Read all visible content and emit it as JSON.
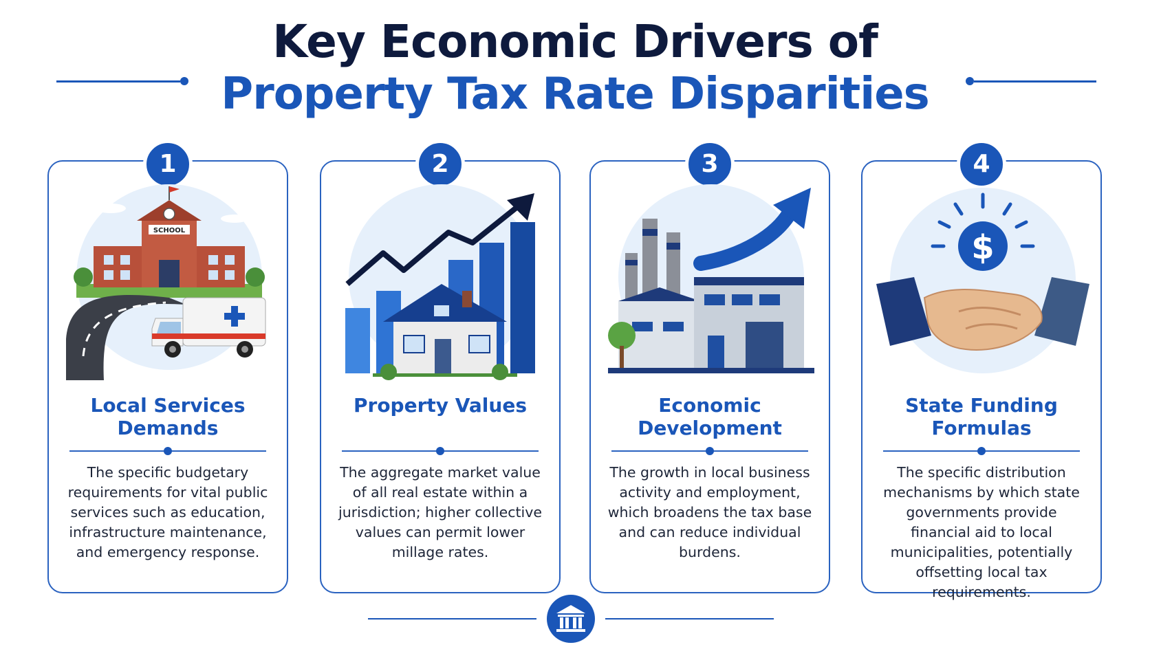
{
  "header": {
    "title_line1": "Key Economic Drivers of",
    "title_line2": "Property Tax Rate Disparities"
  },
  "colors": {
    "primary": "#1a56b8",
    "navy": "#0e1a3d",
    "light_bg": "#e6f0fb"
  },
  "cards": [
    {
      "number": "1",
      "title": "Local Services Demands",
      "description": "The specific budgetary requirements for vital public services such as education, infrastructure maintenance, and emergency response.",
      "school_sign": "SCHOOL",
      "icon": "school-road-ambulance-icon"
    },
    {
      "number": "2",
      "title": "Property Values",
      "description": "The aggregate market value of all real estate within a jurisdiction; higher collective values can permit lower millage rates.",
      "icon": "house-rising-chart-icon"
    },
    {
      "number": "3",
      "title": "Economic Development",
      "description": "The growth in local business activity and employment, which broadens the tax base and can reduce individual burdens.",
      "icon": "factory-growth-arrow-icon"
    },
    {
      "number": "4",
      "title": "State Funding Formulas",
      "description": "The specific distribution mechanisms by which state governments provide financial aid to local municipalities, potentially offsetting local tax requirements.",
      "dollar_symbol": "$",
      "icon": "handshake-dollar-icon"
    }
  ],
  "footer": {
    "icon": "government-building-icon"
  }
}
